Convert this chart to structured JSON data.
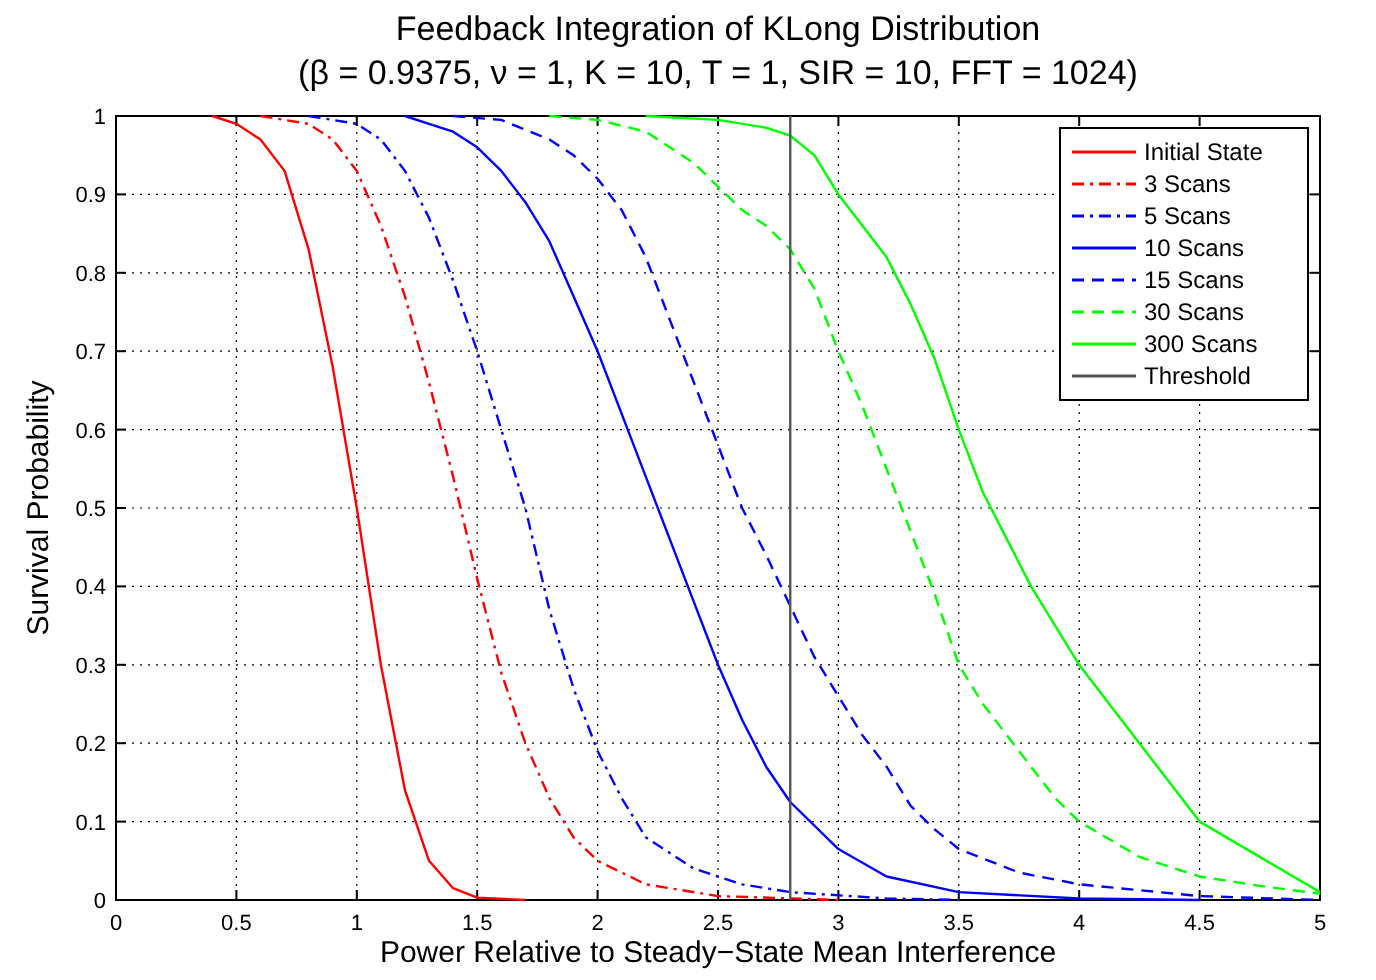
{
  "chart_data": {
    "type": "line",
    "title": "Feedback Integration of KLong Distribution",
    "subtitle": "(β = 0.9375, ν = 1, K = 10, T = 1, SIR = 10, FFT = 1024)",
    "xlabel": "Power Relative to Steady−State Mean Interference",
    "ylabel": "Survival Probability",
    "xlim": [
      0,
      5
    ],
    "ylim": [
      0,
      1
    ],
    "xticks": [
      0,
      0.5,
      1,
      1.5,
      2,
      2.5,
      3,
      3.5,
      4,
      4.5,
      5
    ],
    "yticks": [
      0,
      0.1,
      0.2,
      0.3,
      0.4,
      0.5,
      0.6,
      0.7,
      0.8,
      0.9,
      1
    ],
    "grid": true,
    "legend": "top right",
    "series": [
      {
        "name": "Initial State",
        "color": "#ff0000",
        "line_style": "solid",
        "x": [
          0.4,
          0.5,
          0.6,
          0.7,
          0.8,
          0.9,
          1.0,
          1.1,
          1.2,
          1.3,
          1.4,
          1.5,
          1.7
        ],
        "values": [
          1,
          0.99,
          0.97,
          0.93,
          0.83,
          0.68,
          0.5,
          0.3,
          0.14,
          0.05,
          0.015,
          0.003,
          0
        ]
      },
      {
        "name": "3 Scans",
        "color": "#ff0000",
        "line_style": "dashdot",
        "x": [
          0.6,
          0.8,
          0.9,
          1.0,
          1.1,
          1.2,
          1.3,
          1.4,
          1.5,
          1.6,
          1.7,
          1.8,
          1.9,
          2.0,
          2.2,
          2.5,
          3
        ],
        "values": [
          1,
          0.99,
          0.97,
          0.93,
          0.86,
          0.77,
          0.66,
          0.54,
          0.41,
          0.29,
          0.2,
          0.13,
          0.08,
          0.05,
          0.02,
          0.005,
          0
        ]
      },
      {
        "name": "5 Scans",
        "color": "#0000ff",
        "line_style": "dashdot",
        "x": [
          0.8,
          1.0,
          1.1,
          1.2,
          1.3,
          1.4,
          1.5,
          1.6,
          1.7,
          1.8,
          1.9,
          2.0,
          2.1,
          2.2,
          2.4,
          2.6,
          2.8,
          3.2,
          3.5
        ],
        "values": [
          1,
          0.99,
          0.97,
          0.93,
          0.87,
          0.79,
          0.7,
          0.6,
          0.5,
          0.37,
          0.27,
          0.19,
          0.13,
          0.08,
          0.04,
          0.02,
          0.01,
          0.002,
          0
        ]
      },
      {
        "name": "10 Scans",
        "color": "#0000ff",
        "line_style": "solid",
        "x": [
          1.2,
          1.3,
          1.4,
          1.5,
          1.6,
          1.7,
          1.8,
          1.9,
          2.0,
          2.1,
          2.2,
          2.3,
          2.4,
          2.5,
          2.6,
          2.7,
          2.8,
          3.0,
          3.2,
          3.5,
          4,
          4.5
        ],
        "values": [
          1,
          0.99,
          0.98,
          0.96,
          0.93,
          0.89,
          0.84,
          0.77,
          0.7,
          0.62,
          0.54,
          0.46,
          0.38,
          0.3,
          0.23,
          0.17,
          0.125,
          0.065,
          0.03,
          0.01,
          0.002,
          0
        ]
      },
      {
        "name": "15 Scans",
        "color": "#0000ff",
        "line_style": "dashed",
        "x": [
          1.4,
          1.6,
          1.8,
          1.9,
          2.0,
          2.1,
          2.2,
          2.3,
          2.4,
          2.5,
          2.6,
          2.7,
          2.8,
          2.9,
          3.0,
          3.1,
          3.2,
          3.3,
          3.4,
          3.5,
          3.75,
          4.0,
          4.5,
          5
        ],
        "values": [
          1,
          0.995,
          0.97,
          0.95,
          0.92,
          0.88,
          0.82,
          0.74,
          0.66,
          0.58,
          0.5,
          0.44,
          0.375,
          0.31,
          0.26,
          0.21,
          0.17,
          0.12,
          0.09,
          0.065,
          0.035,
          0.02,
          0.005,
          0
        ]
      },
      {
        "name": "30 Scans",
        "color": "#00ff00",
        "line_style": "dashed",
        "x": [
          1.8,
          2.0,
          2.2,
          2.3,
          2.4,
          2.5,
          2.6,
          2.7,
          2.8,
          2.9,
          3.0,
          3.1,
          3.2,
          3.3,
          3.4,
          3.5,
          3.6,
          3.7,
          3.8,
          3.9,
          4.0,
          4.25,
          4.5,
          4.75,
          5
        ],
        "values": [
          1,
          0.995,
          0.98,
          0.96,
          0.94,
          0.91,
          0.88,
          0.86,
          0.83,
          0.78,
          0.7,
          0.63,
          0.55,
          0.47,
          0.39,
          0.3,
          0.25,
          0.21,
          0.17,
          0.13,
          0.1,
          0.055,
          0.03,
          0.018,
          0.008
        ]
      },
      {
        "name": "300 Scans",
        "color": "#00ff00",
        "line_style": "solid",
        "x": [
          2.2,
          2.5,
          2.7,
          2.8,
          2.9,
          3.0,
          3.1,
          3.2,
          3.3,
          3.4,
          3.5,
          3.6,
          3.7,
          3.8,
          3.9,
          4.0,
          4.25,
          4.5,
          4.75,
          5
        ],
        "values": [
          1,
          0.995,
          0.985,
          0.975,
          0.95,
          0.9,
          0.86,
          0.82,
          0.76,
          0.69,
          0.6,
          0.52,
          0.46,
          0.4,
          0.35,
          0.3,
          0.2,
          0.1,
          0.055,
          0.01
        ]
      },
      {
        "name": "Threshold",
        "color": "#555555",
        "line_style": "solid",
        "x": [
          2.8,
          2.8
        ],
        "values": [
          0,
          1
        ]
      }
    ]
  }
}
